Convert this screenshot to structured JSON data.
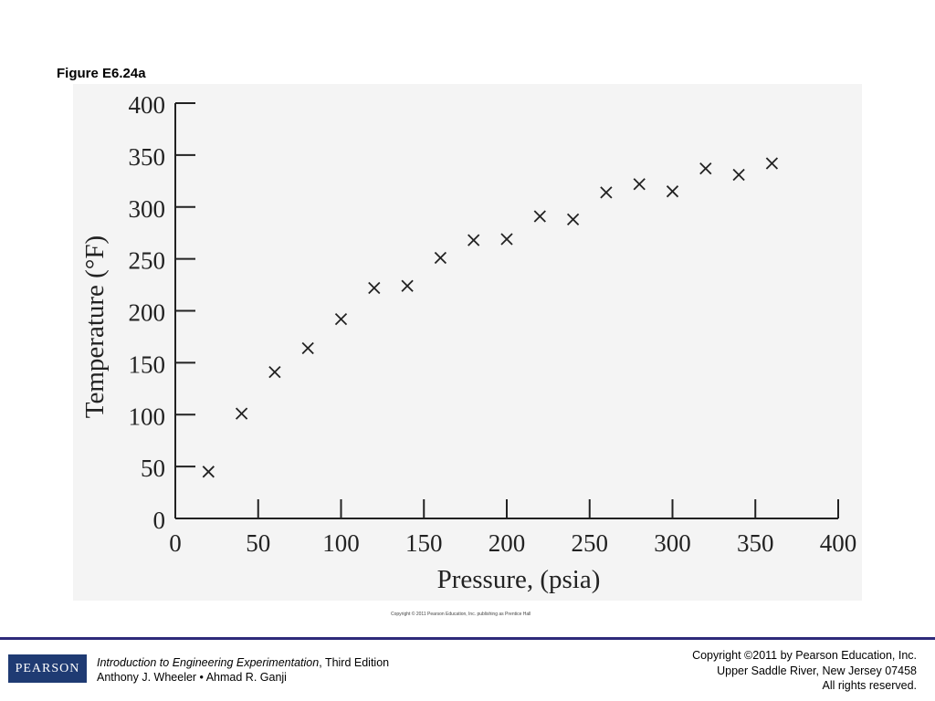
{
  "figure_label": "Figure E6.24a",
  "figure_copyright": "Copyright © 2011 Pearson Education, Inc. publishing as Prentice Hall",
  "footer": {
    "logo_text": "PEARSON",
    "book_title": "Introduction to Engineering Experimentation",
    "edition": ", Third Edition",
    "authors": "Anthony J. Wheeler • Ahmad R. Ganji",
    "copyright_line1": "Copyright ©2011 by Pearson Education, Inc.",
    "copyright_line2": "Upper Saddle River, New Jersey 07458",
    "copyright_line3": "All rights reserved."
  },
  "colors": {
    "footer_rule": "#2e2a7a",
    "logo_bg": "#1f3b73",
    "marker": "#222222"
  },
  "chart_data": {
    "type": "scatter",
    "marker": "x",
    "title": "",
    "xlabel": "Pressure, (psia)",
    "ylabel": "Temperature (°F)",
    "xlim": [
      0,
      400
    ],
    "ylim": [
      0,
      400
    ],
    "xticks": [
      0,
      50,
      100,
      150,
      200,
      250,
      300,
      350,
      400
    ],
    "yticks": [
      0,
      50,
      100,
      150,
      200,
      250,
      300,
      350,
      400
    ],
    "grid": false,
    "points": [
      {
        "x": 20,
        "y": 45
      },
      {
        "x": 40,
        "y": 101
      },
      {
        "x": 60,
        "y": 141
      },
      {
        "x": 80,
        "y": 164
      },
      {
        "x": 100,
        "y": 192
      },
      {
        "x": 120,
        "y": 222
      },
      {
        "x": 140,
        "y": 224
      },
      {
        "x": 160,
        "y": 251
      },
      {
        "x": 180,
        "y": 268
      },
      {
        "x": 200,
        "y": 269
      },
      {
        "x": 220,
        "y": 291
      },
      {
        "x": 240,
        "y": 288
      },
      {
        "x": 260,
        "y": 314
      },
      {
        "x": 280,
        "y": 322
      },
      {
        "x": 300,
        "y": 315
      },
      {
        "x": 320,
        "y": 337
      },
      {
        "x": 340,
        "y": 331
      },
      {
        "x": 360,
        "y": 342
      }
    ]
  }
}
